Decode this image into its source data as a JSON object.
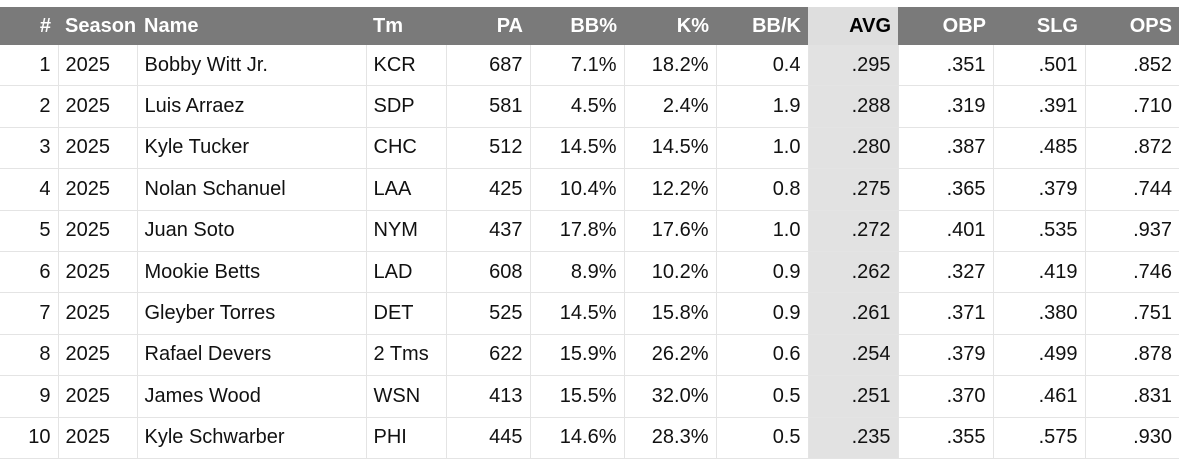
{
  "table": {
    "columns": [
      "#",
      "Season",
      "Name",
      "Tm",
      "PA",
      "BB%",
      "K%",
      "BB/K",
      "AVG",
      "OBP",
      "SLG",
      "OPS"
    ],
    "rows": [
      [
        "1",
        "2025",
        "Bobby Witt Jr.",
        "KCR",
        "687",
        "7.1%",
        "18.2%",
        "0.4",
        ".295",
        ".351",
        ".501",
        ".852"
      ],
      [
        "2",
        "2025",
        "Luis Arraez",
        "SDP",
        "581",
        "4.5%",
        "2.4%",
        "1.9",
        ".288",
        ".319",
        ".391",
        ".710"
      ],
      [
        "3",
        "2025",
        "Kyle Tucker",
        "CHC",
        "512",
        "14.5%",
        "14.5%",
        "1.0",
        ".280",
        ".387",
        ".485",
        ".872"
      ],
      [
        "4",
        "2025",
        "Nolan Schanuel",
        "LAA",
        "425",
        "10.4%",
        "12.2%",
        "0.8",
        ".275",
        ".365",
        ".379",
        ".744"
      ],
      [
        "5",
        "2025",
        "Juan Soto",
        "NYM",
        "437",
        "17.8%",
        "17.6%",
        "1.0",
        ".272",
        ".401",
        ".535",
        ".937"
      ],
      [
        "6",
        "2025",
        "Mookie Betts",
        "LAD",
        "608",
        "8.9%",
        "10.2%",
        "0.9",
        ".262",
        ".327",
        ".419",
        ".746"
      ],
      [
        "7",
        "2025",
        "Gleyber Torres",
        "DET",
        "525",
        "14.5%",
        "15.8%",
        "0.9",
        ".261",
        ".371",
        ".380",
        ".751"
      ],
      [
        "8",
        "2025",
        "Rafael Devers",
        "2 Tms",
        "622",
        "15.9%",
        "26.2%",
        "0.6",
        ".254",
        ".379",
        ".499",
        ".878"
      ],
      [
        "9",
        "2025",
        "James Wood",
        "WSN",
        "413",
        "15.5%",
        "32.0%",
        "0.5",
        ".251",
        ".370",
        ".461",
        ".831"
      ],
      [
        "10",
        "2025",
        "Kyle Schwarber",
        "PHI",
        "445",
        "14.6%",
        "28.3%",
        "0.5",
        ".235",
        ".355",
        ".575",
        ".930"
      ]
    ]
  }
}
